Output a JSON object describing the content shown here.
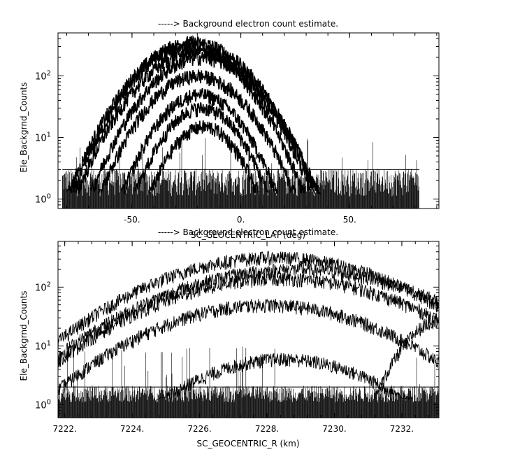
{
  "chart_data": [
    {
      "type": "line",
      "title": "-----> Background electron count estimate.",
      "xlabel": "SC_GEOCENTRIC_LAT (deg)",
      "ylabel": "Ele_Backgrnd_Counts",
      "xlim": [
        -84,
        91
      ],
      "ylim": [
        0.7,
        500
      ],
      "yscale": "log",
      "xticks": [
        {
          "value": -50,
          "label": "-50."
        },
        {
          "value": 0,
          "label": "0."
        },
        {
          "value": 50,
          "label": "50."
        }
      ],
      "yticks": [
        {
          "value": 1,
          "base": "10",
          "exp": "0"
        },
        {
          "value": 10,
          "base": "10",
          "exp": "1"
        },
        {
          "value": 100,
          "base": "10",
          "exp": "2"
        }
      ],
      "grid": false,
      "legend": "none",
      "noise_floor": {
        "x_range": [
          -82,
          82
        ],
        "typical_max": 3,
        "spike_max": 10
      },
      "series": [
        {
          "peak_x": -22,
          "peak_y": 350,
          "width": 17
        },
        {
          "peak_x": -24,
          "peak_y": 300,
          "width": 16
        },
        {
          "peak_x": -20,
          "peak_y": 250,
          "width": 17
        },
        {
          "peak_x": -18,
          "peak_y": 200,
          "width": 16
        },
        {
          "peak_x": -20,
          "peak_y": 100,
          "width": 15
        },
        {
          "peak_x": -19,
          "peak_y": 50,
          "width": 13
        },
        {
          "peak_x": -18,
          "peak_y": 30,
          "width": 12
        },
        {
          "peak_x": -17,
          "peak_y": 15,
          "width": 11
        }
      ]
    },
    {
      "type": "line",
      "title": "-----> Background electron count estimate.",
      "xlabel": "SC_GEOCENTRIC_R (km)",
      "ylabel": "Ele_Backgrnd_Counts",
      "xlim": [
        7221.8,
        7233.1
      ],
      "ylim": [
        0.6,
        600
      ],
      "yscale": "log",
      "xticks": [
        {
          "value": 7222,
          "label": "7222."
        },
        {
          "value": 7224,
          "label": "7224."
        },
        {
          "value": 7226,
          "label": "7226."
        },
        {
          "value": 7228,
          "label": "7228."
        },
        {
          "value": 7230,
          "label": "7230."
        },
        {
          "value": 7232,
          "label": "7232."
        }
      ],
      "yticks": [
        {
          "value": 1,
          "base": "10",
          "exp": "0"
        },
        {
          "value": 10,
          "base": "10",
          "exp": "1"
        },
        {
          "value": 100,
          "base": "10",
          "exp": "2"
        }
      ],
      "grid": false,
      "legend": "none",
      "noise_floor": {
        "x_range": [
          7221.8,
          7233.1
        ],
        "typical_max": 2,
        "spike_max": 10
      },
      "series": [
        {
          "peak_x": 7228.2,
          "peak_y": 320,
          "width": 2.5
        },
        {
          "peak_x": 7228.8,
          "peak_y": 200,
          "width": 2.7
        },
        {
          "peak_x": 7228.4,
          "peak_y": 140,
          "width": 2.6
        },
        {
          "peak_x": 7228.0,
          "peak_y": 50,
          "width": 2.4
        },
        {
          "peak_x": 7228.5,
          "peak_y": 6,
          "width": 2.0
        },
        {
          "peak_x": 7233.2,
          "peak_y": 28,
          "width": 0.8
        }
      ]
    }
  ]
}
